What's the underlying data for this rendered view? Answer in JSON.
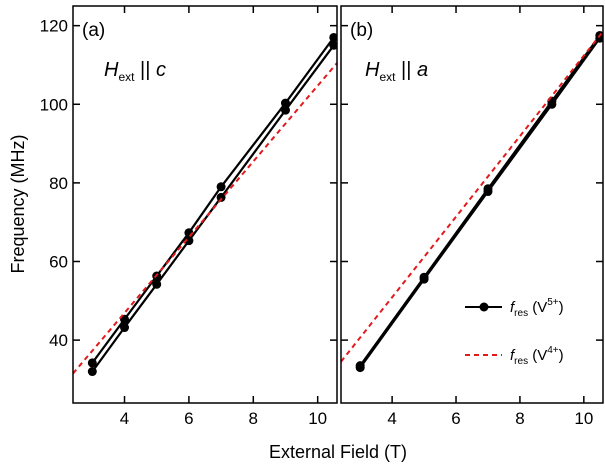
{
  "chart_data": [
    {
      "type": "line",
      "panel_label": "(a)",
      "annotation": {
        "symbol": "H",
        "subscript": "ext",
        "relation": " || ",
        "axis": "c"
      },
      "xlabel": "External Field (T)",
      "ylabel": "Frequency (MHz)",
      "xlim": [
        2.4,
        10.6
      ],
      "ylim": [
        24,
        125
      ],
      "xticks": [
        4,
        6,
        8,
        10
      ],
      "yticks": [
        40,
        60,
        80,
        100,
        120
      ],
      "series": [
        {
          "x": [
            3,
            4,
            5,
            6,
            7,
            9,
            10.5
          ],
          "y": [
            34.2,
            45.3,
            56.3,
            67.3,
            79.0,
            100.3,
            117.0
          ],
          "color": "#000000",
          "style": "solid-marker"
        },
        {
          "x": [
            3,
            4,
            5,
            6,
            7,
            9,
            10.5
          ],
          "y": [
            32.0,
            43.2,
            54.2,
            65.3,
            76.3,
            98.5,
            115.0
          ],
          "color": "#000000",
          "style": "solid-marker"
        },
        {
          "x": [
            2.4,
            10.6
          ],
          "y": [
            31.5,
            110.5
          ],
          "color": "#e31a1c",
          "style": "dashed"
        }
      ]
    },
    {
      "type": "line",
      "panel_label": "(b)",
      "annotation": {
        "symbol": "H",
        "subscript": "ext",
        "relation": " || ",
        "axis": "a"
      },
      "xlim": [
        2.4,
        10.6
      ],
      "ylim": [
        24,
        125
      ],
      "xticks": [
        4,
        6,
        8,
        10
      ],
      "yticks": [
        40,
        60,
        80,
        100,
        120
      ],
      "series": [
        {
          "x": [
            3,
            5,
            7,
            9,
            10.5
          ],
          "y": [
            33.5,
            56.0,
            78.5,
            100.8,
            117.5
          ],
          "color": "#000000",
          "style": "solid-marker"
        },
        {
          "x": [
            3,
            5,
            7,
            9,
            10.5
          ],
          "y": [
            33.0,
            55.5,
            77.8,
            100.0,
            116.8
          ],
          "color": "#000000",
          "style": "solid-marker"
        },
        {
          "x": [
            2.4,
            10.6
          ],
          "y": [
            34.5,
            118.5
          ],
          "color": "#e31a1c",
          "style": "dashed"
        }
      ],
      "legend": {
        "placement": "bottom-right",
        "entries": [
          {
            "symbol": "f",
            "subscript": "res",
            "paren_open": " (V",
            "superscript": "5+",
            "paren_close": ")",
            "style": "solid-marker",
            "color": "#000000"
          },
          {
            "symbol": "f",
            "subscript": "res",
            "paren_open": " (V",
            "superscript": "4+",
            "paren_close": ")",
            "style": "dashed",
            "color": "#e31a1c"
          }
        ]
      }
    }
  ]
}
